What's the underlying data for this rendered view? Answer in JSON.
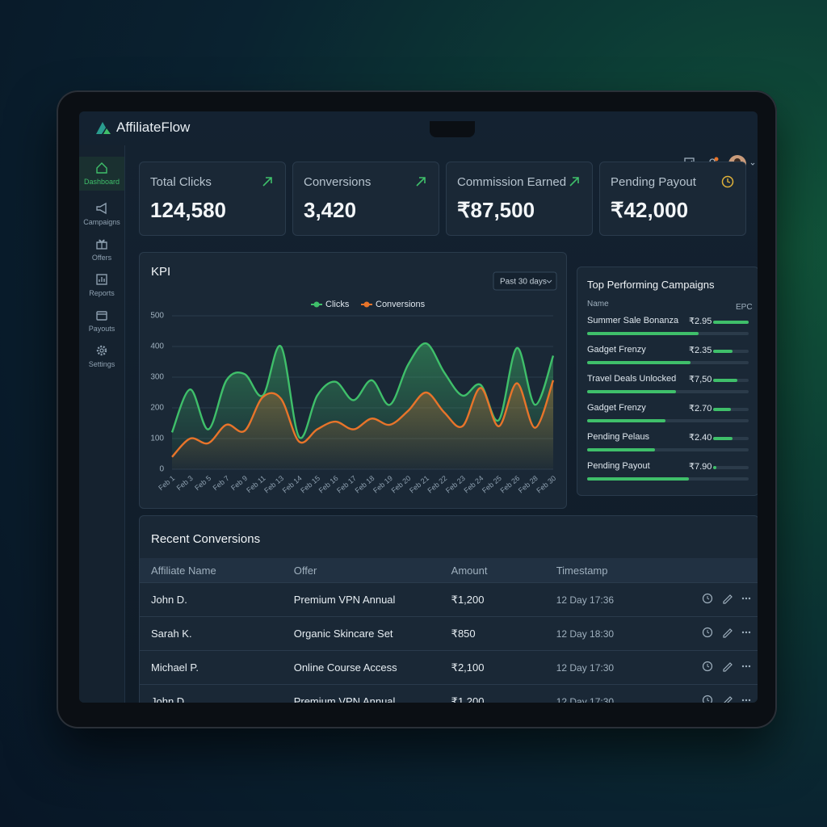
{
  "brand": "AffiliateFlow",
  "sidebar": [
    "Dashboard",
    "Campaigns",
    "Offers",
    "Reports",
    "Payouts",
    "Settings"
  ],
  "kpis": [
    {
      "label": "Total Clicks",
      "value": "124,580"
    },
    {
      "label": "Conversions",
      "value": "3,420"
    },
    {
      "label": "Commission Earned",
      "value": "₹87,500"
    },
    {
      "label": "Pending Payout",
      "value": "₹42,000"
    }
  ],
  "kpi_chart": {
    "type": "area",
    "title": "KPI",
    "filter": "Past 30 days",
    "categories": [
      "Feb 1",
      "Feb 3",
      "Feb 5",
      "Feb 7",
      "Feb 9",
      "Feb 11",
      "Feb 13",
      "Feb 14",
      "Feb 15",
      "Feb 16",
      "Feb 17",
      "Feb 18",
      "Feb 19",
      "Feb 20",
      "Feb 21",
      "Feb 22",
      "Feb 23",
      "Feb 24",
      "Feb 25",
      "Feb 26",
      "Feb 28",
      "Feb 30"
    ],
    "series": [
      {
        "name": "Clicks",
        "color": "#3fbf6a",
        "values": [
          120,
          260,
          130,
          290,
          310,
          240,
          400,
          105,
          240,
          285,
          225,
          290,
          210,
          340,
          410,
          315,
          240,
          275,
          160,
          395,
          210,
          370
        ]
      },
      {
        "name": "Conversions",
        "color": "#e8742a",
        "values": [
          40,
          100,
          85,
          145,
          125,
          235,
          230,
          90,
          130,
          155,
          130,
          165,
          145,
          190,
          250,
          185,
          140,
          265,
          140,
          280,
          135,
          290
        ]
      }
    ],
    "ylim": [
      0,
      500
    ],
    "yticks": [
      0,
      100,
      200,
      300,
      400,
      500
    ],
    "grid": true
  },
  "top_campaigns": {
    "title": "Top Performing Campaigns",
    "columns": [
      "Name",
      "EPC"
    ],
    "rows": [
      {
        "name": "Summer Sale Bonanza",
        "epc": "₹2.95"
      },
      {
        "name": "Gadget Frenzy",
        "epc": "₹2.35"
      },
      {
        "name": "Travel Deals Unlocked",
        "epc": "₹7,50"
      },
      {
        "name": "Gadget Frenzy",
        "epc": "₹2.70"
      },
      {
        "name": "Pending Pelaus",
        "epc": "₹2.40"
      },
      {
        "name": "Pending Payout",
        "epc": "₹7.90"
      }
    ]
  },
  "recent_conversions": {
    "title": "Recent Conversions",
    "columns": [
      "Affiliate Name",
      "Offer",
      "Amount",
      "Timestamp"
    ],
    "rows": [
      [
        "John D.",
        "Premium VPN Annual",
        "₹1,200",
        "12 Day 17:36"
      ],
      [
        "Sarah K.",
        "Organic Skincare Set",
        "₹850",
        "12 Day 18:30"
      ],
      [
        "Michael P.",
        "Online Course Access",
        "₹2,100",
        "12 Day 17:30"
      ],
      [
        "John D.",
        "Premium VPN Annual",
        "₹1,200",
        "12 Day 17:30"
      ]
    ]
  }
}
